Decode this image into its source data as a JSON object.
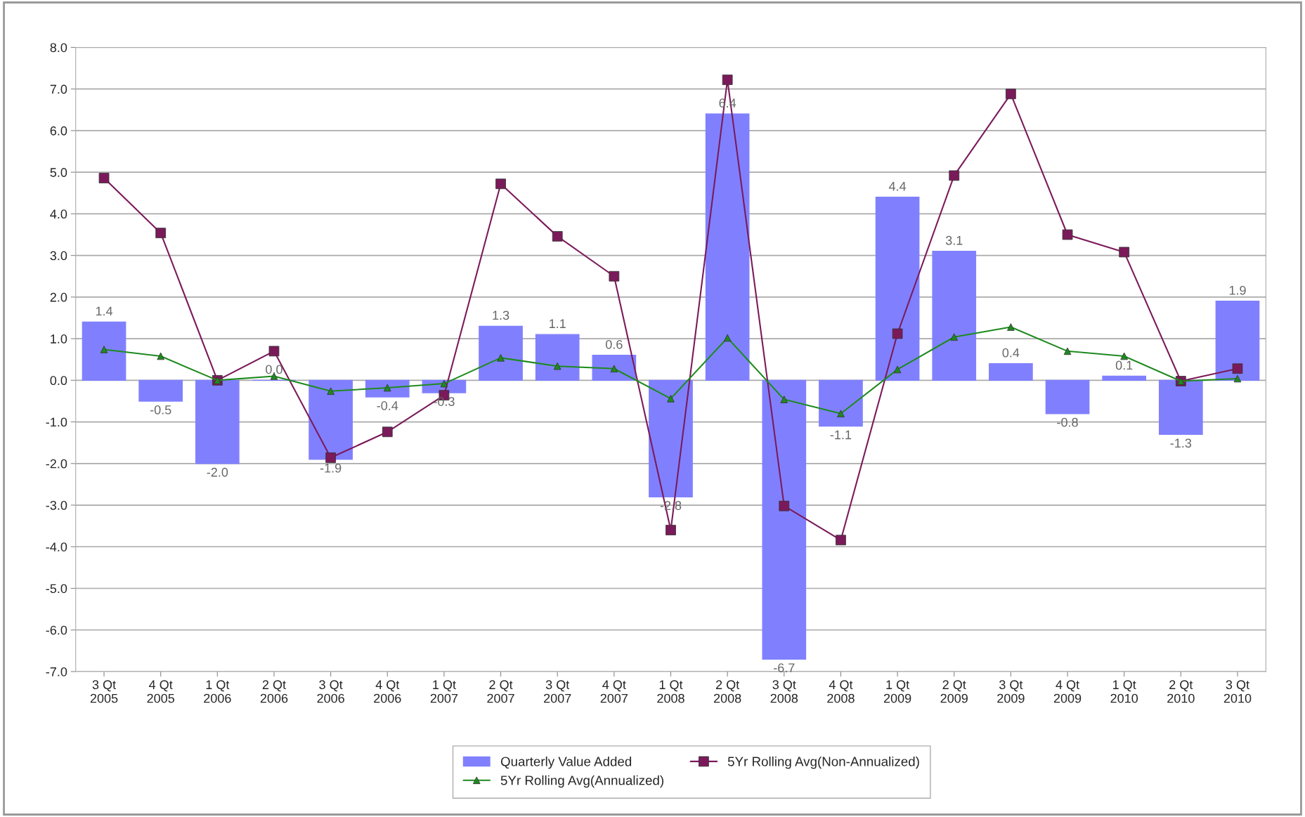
{
  "chart_data": {
    "type": "bar",
    "categories": [
      "3 Qt\n2005",
      "4 Qt\n2005",
      "1 Qt\n2006",
      "2 Qt\n2006",
      "3 Qt\n2006",
      "4 Qt\n2006",
      "1 Qt\n2007",
      "2 Qt\n2007",
      "3 Qt\n2007",
      "4 Qt\n2007",
      "1 Qt\n2008",
      "2 Qt\n2008",
      "3 Qt\n2008",
      "4 Qt\n2008",
      "1 Qt\n2009",
      "2 Qt\n2009",
      "3 Qt\n2009",
      "4 Qt\n2009",
      "1 Qt\n2010",
      "2 Qt\n2010",
      "3 Qt\n2010"
    ],
    "series": [
      {
        "name": "Quarterly Value Added",
        "color": "#8080ff",
        "values": [
          1.4,
          -0.5,
          -2.0,
          0.0,
          -1.9,
          -0.4,
          -0.3,
          1.3,
          1.1,
          0.6,
          -2.8,
          6.4,
          -6.7,
          -1.1,
          4.4,
          3.1,
          0.4,
          -0.8,
          0.1,
          -1.3,
          1.9
        ],
        "value_labels": [
          "1.4",
          "-0.5",
          "-2.0",
          "0.0",
          "-1.9",
          "-0.4",
          "-0.3",
          "1.3",
          "1.1",
          "0.6",
          "-2.8",
          "6.4",
          "-6.7",
          "-1.1",
          "4.4",
          "3.1",
          "0.4",
          "-0.8",
          "0.1",
          "-1.3",
          "1.9"
        ]
      },
      {
        "name": "5Yr Rolling Avg(Non-Annualized)",
        "type": "line",
        "color": "#7b1a5a",
        "marker": "square",
        "values": [
          4.86,
          3.54,
          0.0,
          0.7,
          -1.86,
          -1.24,
          -0.36,
          4.72,
          3.46,
          2.5,
          -3.6,
          7.22,
          -3.02,
          -3.84,
          1.12,
          4.92,
          6.88,
          3.5,
          3.08,
          -0.02,
          0.28
        ]
      },
      {
        "name": "5Yr Rolling Avg(Annualized)",
        "type": "line",
        "color": "#1e8a1e",
        "marker": "triangle",
        "values": [
          0.74,
          0.58,
          0.0,
          0.1,
          -0.26,
          -0.18,
          -0.08,
          0.54,
          0.34,
          0.28,
          -0.44,
          1.02,
          -0.46,
          -0.8,
          0.26,
          1.04,
          1.28,
          0.7,
          0.58,
          -0.02,
          0.04
        ]
      }
    ],
    "ylim": [
      -7.0,
      8.0
    ],
    "yticks": [
      {
        "value": -7,
        "label": "-7.0"
      },
      {
        "value": -6,
        "label": "-6.0"
      },
      {
        "value": -5,
        "label": "-5.0"
      },
      {
        "value": -4,
        "label": "-4.0"
      },
      {
        "value": -3,
        "label": "-3.0"
      },
      {
        "value": -2,
        "label": "-2.0"
      },
      {
        "value": -1,
        "label": "-1.0"
      },
      {
        "value": 0,
        "label": "0.0"
      },
      {
        "value": 1,
        "label": "1.0"
      },
      {
        "value": 2,
        "label": "2.0"
      },
      {
        "value": 3,
        "label": "3.0"
      },
      {
        "value": 4,
        "label": "4.0"
      },
      {
        "value": 5,
        "label": "5.0"
      },
      {
        "value": 6,
        "label": "6.0"
      },
      {
        "value": 7,
        "label": "7.0"
      },
      {
        "value": 8,
        "label": "8.0"
      }
    ],
    "grid": "y",
    "legend": "bottom"
  }
}
